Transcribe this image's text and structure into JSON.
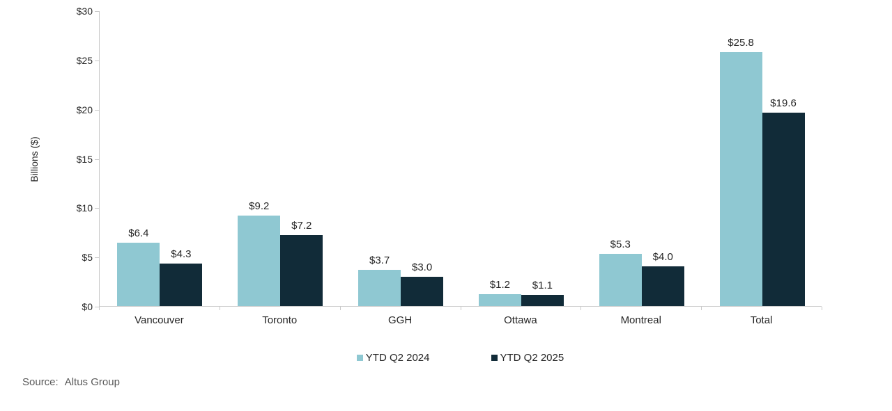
{
  "chart_data": {
    "type": "bar",
    "title": "",
    "xlabel": "",
    "ylabel": "Billions ($)",
    "ylim": [
      0,
      30
    ],
    "y_tick_values": [
      0,
      5,
      10,
      15,
      20,
      25,
      30
    ],
    "y_tick_labels": [
      "$0",
      "$5",
      "$10",
      "$15",
      "$20",
      "$25",
      "$30"
    ],
    "categories": [
      "Vancouver",
      "Toronto",
      "GGH",
      "Ottawa",
      "Montreal",
      "Total"
    ],
    "series": [
      {
        "name": "YTD Q2 2024",
        "color": "#8fc8d2",
        "values": [
          6.4,
          9.2,
          3.7,
          1.2,
          5.3,
          25.8
        ],
        "labels": [
          "$6.4",
          "$9.2",
          "$3.7",
          "$1.2",
          "$5.3",
          "$25.8"
        ]
      },
      {
        "name": "YTD Q2 2025",
        "color": "#112b38",
        "values": [
          4.3,
          7.2,
          3.0,
          1.1,
          4.0,
          19.6
        ],
        "labels": [
          "$4.3",
          "$7.2",
          "$3.0",
          "$1.1",
          "$4.0",
          "$19.6"
        ]
      }
    ],
    "legend_position": "bottom",
    "grid": false
  },
  "colors": {
    "axis_line": "#c9c9c9",
    "text": "#262626",
    "source_text": "#595959"
  },
  "source": {
    "prefix": "Source:",
    "name": "Altus Group"
  }
}
